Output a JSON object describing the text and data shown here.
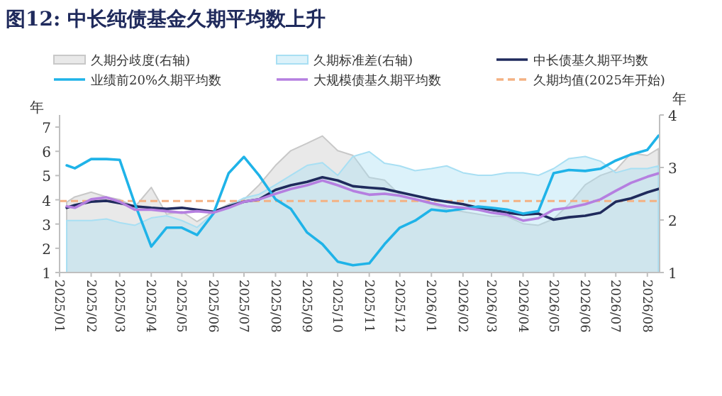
{
  "chart_data": {
    "type": "line",
    "title": "图12:  中长纯债基金久期平均数上升",
    "ylabel": "年",
    "y2label": "年",
    "x": [
      "2025-01-08",
      "2025-01-16",
      "2025-02-01",
      "2025-02-16",
      "2025-03-01",
      "2025-03-16",
      "2025-04-01",
      "2025-04-16",
      "2025-05-01",
      "2025-05-16",
      "2025-06-01",
      "2025-06-16",
      "2025-07-01",
      "2025-07-16",
      "2025-08-01",
      "2025-08-16",
      "2025-09-01",
      "2025-09-16",
      "2025-10-01",
      "2025-10-16",
      "2025-11-01",
      "2025-11-16",
      "2025-12-01",
      "2025-12-16",
      "2026-01-01",
      "2026-01-16",
      "2026-02-01",
      "2026-02-16",
      "2026-03-01",
      "2026-03-16",
      "2026-04-01",
      "2026-04-16",
      "2026-05-01",
      "2026-05-16",
      "2026-06-01",
      "2026-06-16",
      "2026-07-01",
      "2026-07-16",
      "2026-08-01",
      "2026-08-12"
    ],
    "xlim": [
      "2025-01-01",
      "2026-08-13"
    ],
    "xticks": [
      {
        "value": "2025-01-01",
        "label": "2025/01"
      },
      {
        "value": "2025-02-01",
        "label": "2025/02"
      },
      {
        "value": "2025-03-01",
        "label": "2025/03"
      },
      {
        "value": "2025-04-01",
        "label": "2025/04"
      },
      {
        "value": "2025-05-01",
        "label": "2025/05"
      },
      {
        "value": "2025-06-01",
        "label": "2025/06"
      },
      {
        "value": "2025-07-01",
        "label": "2025/07"
      },
      {
        "value": "2025-08-01",
        "label": "2025/08"
      },
      {
        "value": "2025-09-01",
        "label": "2025/09"
      },
      {
        "value": "2025-10-01",
        "label": "2025/10"
      },
      {
        "value": "2025-11-01",
        "label": "2025/11"
      },
      {
        "value": "2025-12-01",
        "label": "2025/12"
      },
      {
        "value": "2026-01-01",
        "label": "2026/01"
      },
      {
        "value": "2026-02-01",
        "label": "2026/02"
      },
      {
        "value": "2026-03-01",
        "label": "2026/03"
      },
      {
        "value": "2026-04-01",
        "label": "2026/04"
      },
      {
        "value": "2026-05-01",
        "label": "2026/05"
      },
      {
        "value": "2026-06-01",
        "label": "2026/06"
      },
      {
        "value": "2026-07-01",
        "label": "2026/07"
      },
      {
        "value": "2026-08-01",
        "label": "2026/08"
      }
    ],
    "ylim": [
      1,
      7.5
    ],
    "yticks": [
      1,
      2,
      3,
      4,
      5,
      6,
      7
    ],
    "y2lim": [
      1,
      4
    ],
    "y2ticks": [
      1,
      2,
      3,
      4
    ],
    "legend": "top",
    "marker": "none",
    "ref_lines": [
      {
        "axis": "y",
        "value": 3.95,
        "label": "久期均值(2025年开始)",
        "color": "#f4b183",
        "line_style": "dashed"
      }
    ],
    "series": [
      {
        "name": "久期分歧度(右轴)",
        "type": "area",
        "axis": "y2",
        "color": "#c8c8c8",
        "values": [
          2.34,
          2.44,
          2.53,
          2.44,
          2.39,
          2.25,
          2.62,
          2.11,
          2.16,
          1.97,
          2.16,
          2.3,
          2.39,
          2.67,
          3.04,
          3.32,
          3.46,
          3.6,
          3.32,
          3.23,
          2.81,
          2.76,
          2.48,
          2.39,
          2.3,
          2.21,
          2.16,
          2.11,
          2.07,
          2.07,
          1.93,
          1.9,
          2.02,
          2.3,
          2.67,
          2.85,
          2.95,
          3.27,
          3.23,
          3.36
        ]
      },
      {
        "name": "久期标准差(右轴)",
        "type": "area",
        "axis": "y2",
        "color": "#a8dff3",
        "values": [
          1.99,
          1.99,
          1.99,
          2.02,
          1.95,
          1.9,
          2.04,
          2.08,
          1.99,
          1.86,
          2.13,
          2.27,
          2.42,
          2.49,
          2.67,
          2.85,
          3.04,
          3.09,
          2.85,
          3.21,
          3.3,
          3.08,
          3.03,
          2.94,
          2.98,
          3.03,
          2.9,
          2.85,
          2.85,
          2.9,
          2.9,
          2.85,
          2.98,
          3.17,
          3.21,
          3.12,
          2.9,
          2.98,
          2.98,
          3.03
        ]
      },
      {
        "name": "中长债基久期平均数",
        "type": "line",
        "color": "#1f2a5c",
        "values": [
          3.67,
          3.78,
          3.92,
          3.96,
          3.86,
          3.73,
          3.67,
          3.63,
          3.67,
          3.59,
          3.51,
          3.73,
          3.92,
          4.02,
          4.41,
          4.6,
          4.74,
          4.93,
          4.8,
          4.56,
          4.5,
          4.45,
          4.31,
          4.17,
          4.02,
          3.92,
          3.82,
          3.67,
          3.59,
          3.47,
          3.39,
          3.43,
          3.18,
          3.28,
          3.34,
          3.47,
          3.92,
          4.06,
          4.31,
          4.45
        ]
      },
      {
        "name": "业绩前20%久期平均数",
        "type": "line",
        "color": "#1fb3e8",
        "values": [
          5.42,
          5.3,
          5.68,
          5.68,
          5.65,
          3.82,
          2.07,
          2.85,
          2.85,
          2.55,
          3.43,
          5.1,
          5.77,
          5.0,
          4.02,
          3.63,
          2.65,
          2.17,
          1.45,
          1.3,
          1.38,
          2.17,
          2.85,
          3.14,
          3.6,
          3.53,
          3.63,
          3.72,
          3.67,
          3.6,
          3.43,
          3.53,
          5.1,
          5.23,
          5.19,
          5.28,
          5.62,
          5.87,
          6.06,
          6.65
        ]
      },
      {
        "name": "大规模债基久期平均数",
        "type": "line",
        "color": "#b57fe0",
        "values": [
          3.73,
          3.67,
          4.02,
          4.1,
          3.92,
          3.59,
          3.59,
          3.53,
          3.47,
          3.53,
          3.47,
          3.67,
          3.92,
          4.02,
          4.25,
          4.45,
          4.6,
          4.8,
          4.6,
          4.37,
          4.21,
          4.25,
          4.17,
          4.02,
          3.86,
          3.73,
          3.67,
          3.59,
          3.47,
          3.39,
          3.14,
          3.24,
          3.59,
          3.67,
          3.82,
          4.02,
          4.37,
          4.7,
          4.95,
          5.09
        ]
      }
    ]
  }
}
